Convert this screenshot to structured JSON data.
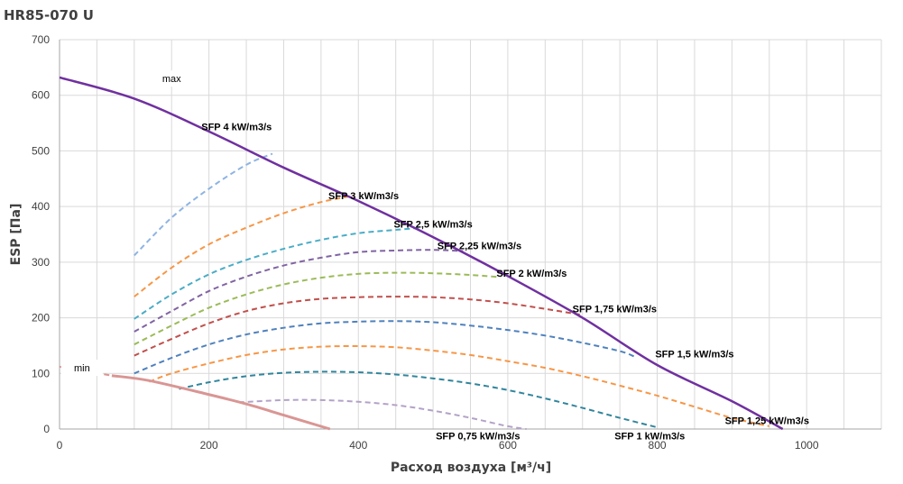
{
  "chart_data": {
    "type": "line",
    "title": "HR85-070 U",
    "xlabel": "Расход воздуха [м³/ч]",
    "ylabel": "ESP [Па]",
    "xlim": [
      0,
      1100
    ],
    "ylim": [
      0,
      700
    ],
    "xticks": [
      0,
      200,
      400,
      600,
      800,
      1000
    ],
    "yticks": [
      0,
      100,
      200,
      300,
      400,
      500,
      600,
      700
    ],
    "grid": true,
    "limit_curves": [
      {
        "name": "max",
        "color": "#7030a0",
        "points": [
          [
            0,
            632
          ],
          [
            100,
            594
          ],
          [
            200,
            535
          ],
          [
            300,
            470
          ],
          [
            400,
            410
          ],
          [
            500,
            345
          ],
          [
            600,
            275
          ],
          [
            700,
            200
          ],
          [
            800,
            115
          ],
          [
            900,
            50
          ],
          [
            968,
            0
          ]
        ]
      },
      {
        "name": "min",
        "color": "#d99694",
        "points": [
          [
            70,
            96
          ],
          [
            120,
            87
          ],
          [
            200,
            62
          ],
          [
            250,
            45
          ],
          [
            300,
            25
          ],
          [
            362,
            0
          ]
        ]
      }
    ],
    "min_lead_dashes": [
      [
        [
          0,
          112
        ],
        [
          70,
          96
        ]
      ]
    ],
    "sfp_curves": [
      {
        "name": "SFP 4 kW/m3/s",
        "color": "#8eb4e3",
        "points": [
          [
            100,
            312
          ],
          [
            150,
            380
          ],
          [
            200,
            432
          ],
          [
            250,
            475
          ],
          [
            285,
            495
          ]
        ]
      },
      {
        "name": "SFP 3 kW/m3/s",
        "color": "#f79646",
        "points": [
          [
            100,
            238
          ],
          [
            150,
            290
          ],
          [
            200,
            332
          ],
          [
            250,
            362
          ],
          [
            300,
            388
          ],
          [
            350,
            408
          ],
          [
            395,
            420
          ]
        ]
      },
      {
        "name": "SFP 2,5 kW/m3/s",
        "color": "#4bacc6",
        "points": [
          [
            100,
            198
          ],
          [
            150,
            242
          ],
          [
            200,
            278
          ],
          [
            250,
            304
          ],
          [
            300,
            324
          ],
          [
            350,
            340
          ],
          [
            400,
            352
          ],
          [
            450,
            358
          ],
          [
            485,
            362
          ]
        ]
      },
      {
        "name": "SFP 2,25 kW/m3/s",
        "color": "#8064a2",
        "points": [
          [
            100,
            175
          ],
          [
            150,
            212
          ],
          [
            200,
            248
          ],
          [
            250,
            274
          ],
          [
            300,
            294
          ],
          [
            350,
            308
          ],
          [
            400,
            318
          ],
          [
            450,
            321
          ],
          [
            500,
            322
          ],
          [
            540,
            320
          ]
        ]
      },
      {
        "name": "SFP 2 kW/m3/s",
        "color": "#9bbb59",
        "points": [
          [
            100,
            152
          ],
          [
            150,
            186
          ],
          [
            200,
            218
          ],
          [
            250,
            242
          ],
          [
            300,
            260
          ],
          [
            350,
            272
          ],
          [
            400,
            279
          ],
          [
            450,
            281
          ],
          [
            500,
            280
          ],
          [
            550,
            277
          ],
          [
            590,
            273
          ]
        ]
      },
      {
        "name": "SFP 1,75 kW/m3/s",
        "color": "#c0504d",
        "points": [
          [
            100,
            132
          ],
          [
            150,
            162
          ],
          [
            200,
            190
          ],
          [
            250,
            212
          ],
          [
            300,
            226
          ],
          [
            350,
            234
          ],
          [
            400,
            237
          ],
          [
            450,
            238
          ],
          [
            500,
            237
          ],
          [
            550,
            233
          ],
          [
            600,
            226
          ],
          [
            650,
            216
          ],
          [
            700,
            205
          ]
        ]
      },
      {
        "name": "SFP 1,5 kW/m3/s",
        "color": "#4f81bd",
        "points": [
          [
            100,
            100
          ],
          [
            150,
            128
          ],
          [
            200,
            152
          ],
          [
            250,
            170
          ],
          [
            300,
            182
          ],
          [
            350,
            190
          ],
          [
            400,
            193
          ],
          [
            450,
            194
          ],
          [
            500,
            192
          ],
          [
            550,
            186
          ],
          [
            600,
            178
          ],
          [
            650,
            168
          ],
          [
            700,
            155
          ],
          [
            750,
            140
          ],
          [
            770,
            130
          ]
        ]
      },
      {
        "name": "SFP 1,25 kW/m3/s",
        "color": "#f79646",
        "points": [
          [
            120,
            85
          ],
          [
            150,
            100
          ],
          [
            200,
            118
          ],
          [
            250,
            133
          ],
          [
            300,
            143
          ],
          [
            350,
            148
          ],
          [
            400,
            149
          ],
          [
            450,
            147
          ],
          [
            500,
            141
          ],
          [
            550,
            133
          ],
          [
            600,
            122
          ],
          [
            650,
            110
          ],
          [
            700,
            95
          ],
          [
            750,
            78
          ],
          [
            800,
            60
          ],
          [
            850,
            40
          ],
          [
            900,
            20
          ],
          [
            950,
            5
          ]
        ]
      },
      {
        "name": "SFP 1 kW/m3/s",
        "color": "#31859c",
        "points": [
          [
            160,
            72
          ],
          [
            200,
            84
          ],
          [
            250,
            95
          ],
          [
            300,
            101
          ],
          [
            350,
            103
          ],
          [
            400,
            102
          ],
          [
            450,
            98
          ],
          [
            500,
            91
          ],
          [
            550,
            82
          ],
          [
            600,
            70
          ],
          [
            650,
            55
          ],
          [
            700,
            38
          ],
          [
            750,
            20
          ],
          [
            800,
            3
          ]
        ]
      },
      {
        "name": "SFP 0,75 kW/m3/s",
        "color": "#b3a2c7",
        "points": [
          [
            240,
            48
          ],
          [
            300,
            52
          ],
          [
            350,
            52
          ],
          [
            400,
            49
          ],
          [
            450,
            43
          ],
          [
            500,
            33
          ],
          [
            550,
            20
          ],
          [
            600,
            5
          ],
          [
            625,
            0
          ]
        ]
      }
    ],
    "annotations": [
      {
        "text": "max",
        "x": 150,
        "y": 630
      },
      {
        "text": "min",
        "x": 30,
        "y": 110
      },
      {
        "text": "SFP 4 kW/m3/s",
        "x": 237,
        "y": 544
      },
      {
        "text": "SFP 3 kW/m3/s",
        "x": 407,
        "y": 420
      },
      {
        "text": "SFP 2,5 kW/m3/s",
        "x": 500,
        "y": 369
      },
      {
        "text": "SFP 2,25 kW/m3/s",
        "x": 562,
        "y": 330
      },
      {
        "text": "SFP 2 kW/m3/s",
        "x": 632,
        "y": 280
      },
      {
        "text": "SFP 1,75 kW/m3/s",
        "x": 743,
        "y": 216
      },
      {
        "text": "SFP 1,5 kW/m3/s",
        "x": 850,
        "y": 135
      },
      {
        "text": "SFP 1,25 kW/m3/s",
        "x": 947,
        "y": 15
      },
      {
        "text": "SFP 0,75 kW/m3/s",
        "x": 560,
        "y": -12
      },
      {
        "text": "SFP 1 kW/m3/s",
        "x": 790,
        "y": -12
      }
    ]
  }
}
